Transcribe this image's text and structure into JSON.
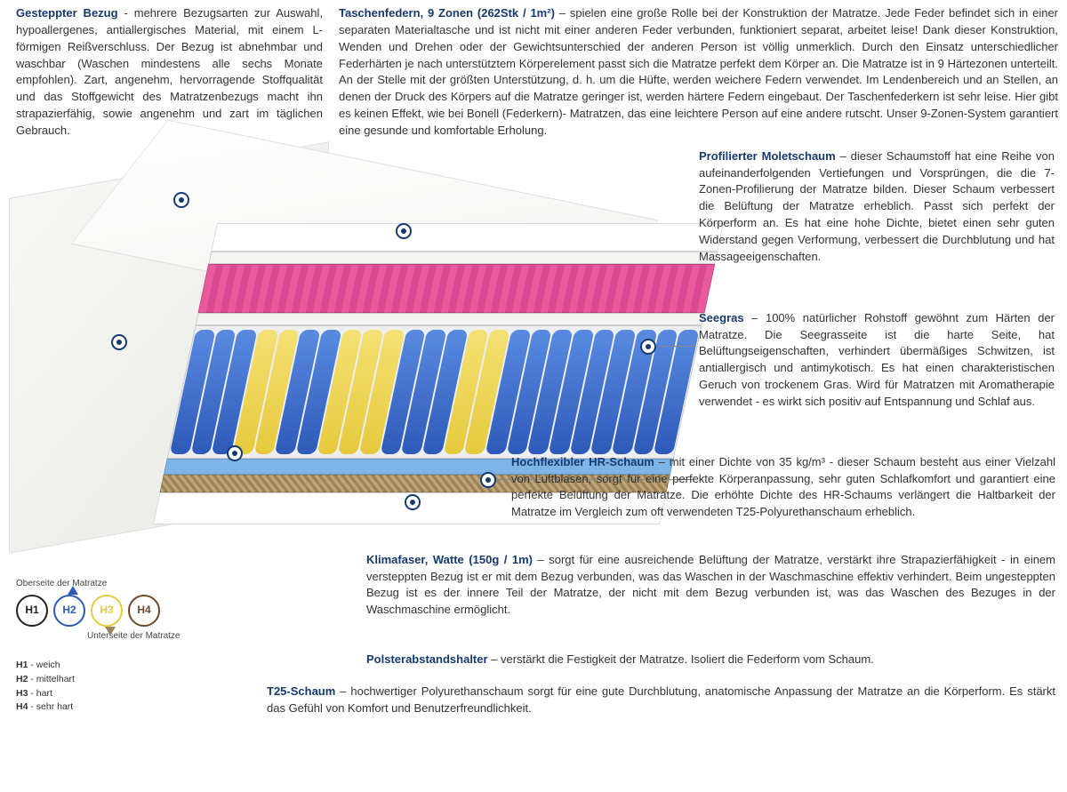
{
  "colors": {
    "heading": "#153a6e",
    "text": "#333333",
    "spring_blue": "#2d5ab8",
    "spring_yellow": "#e6c93c",
    "foam_pink": "#e85a9b",
    "foam_blue": "#7fb4e8",
    "seagrass": "#9c8258",
    "h1_ring": "#222222",
    "h2_ring": "#2d5ab8",
    "h3_ring": "#e6c93c",
    "h4_ring": "#6b4a2a"
  },
  "top": {
    "bezug_h": "Gesteppter Bezug",
    "bezug_t": " - mehrere Bezugsarten zur Auswahl, hypoallergenes, antiallergisches Material, mit einem L-förmigen Reißverschluss. Der Bezug ist abnehmbar und waschbar (Waschen mindestens alle sechs Monate empfohlen). Zart, angenehm, hervorragende Stoffqualität und das Stoffgewicht des Matratzenbezugs macht ihn strapazierfähig, sowie angenehm und zart im täglichen Gebrauch.",
    "federn_h": "Taschenfedern, 9 Zonen (262Stk / 1m²)",
    "federn_t": " –  spielen eine große Rolle bei der Konstruktion der Matratze. Jede Feder befindet sich in einer separaten Materialtasche und ist nicht mit einer anderen Feder verbunden, funktioniert separat, arbeitet leise! Dank dieser Konstruktion, Wenden und Drehen oder der Gewichtsunterschied der anderen Person ist völlig unmerklich. Durch den Einsatz unterschiedlicher Federhärten je nach unterstütztem Körperelement passt sich die Matratze perfekt dem Körper an. Die Matratze ist in 9 Härtezonen unterteilt. An der Stelle mit der größten Unterstützung, d. h. um die Hüfte, werden weichere Federn verwendet. Im Lendenbereich und an Stellen, an denen der Druck des Körpers auf die Matratze geringer ist, werden härtere Federn eingebaut. Der Taschenfederkern ist sehr leise. Hier gibt es keinen Effekt, wie bei Bonell (Federkern)- Matratzen, das eine leichtere Person auf eine andere rutscht. Unser 9-Zonen-System garantiert eine gesunde und komfortable Erholung."
  },
  "ann": {
    "molet_h": "Profilierter Moletschaum",
    "molet_t": " – dieser Schaumstoff hat eine Reihe von aufeinanderfolgenden Vertiefungen und Vorsprüngen, die die 7-Zonen-Profilierung der Matratze bilden. Dieser Schaum verbessert die Belüftung der Matratze erheblich. Passt sich perfekt der Körperform an. Es hat eine hohe Dichte, bietet einen sehr guten Widerstand gegen Verformung, verbessert die Durchblutung und hat Massageeigenschaften.",
    "seegras_h": "Seegras",
    "seegras_t": " – 100% natürlicher Rohstoff gewöhnt zum Härten der Matratze. Die Seegrasseite ist die harte Seite, hat Belüftungseigenschaften, verhindert übermäßiges Schwitzen, ist antiallergisch und antimykotisch. Es hat einen charakteristischen Geruch von trockenem Gras. Wird für Matratzen mit Aromatherapie verwendet - es wirkt sich positiv auf Entspannung und Schlaf aus.",
    "hr_h": "Hochflexibler HR-Schaum",
    "hr_t": " –  mit einer Dichte von 35 kg/m³ - dieser Schaum besteht aus einer Vielzahl von Luftblasen, sorgt für eine perfekte Körperanpassung, sehr guten Schlafkomfort und garantiert eine perfekte Belüftung der Matratze. Die erhöhte Dichte des HR-Schaums verlängert die Haltbarkeit der Matratze im Vergleich zum oft verwendeten T25-Polyurethanschaum erheblich.",
    "klima_h": "Klimafaser, Watte (150g / 1m)",
    "klima_t": " –  sorgt für eine ausreichende Belüftung der Matratze, verstärkt ihre Strapazierfähigkeit - in einem versteppten Bezug ist er mit dem Bezug verbunden, was das Waschen in der Waschmaschine effektiv verhindert. Beim ungesteppten Bezug ist es der innere Teil der Matratze, der nicht mit dem Bezug verbunden ist, was das Waschen des Bezuges in der Waschmaschine ermöglicht.",
    "polster_h": "Polsterabstandshalter",
    "polster_t": " – verstärkt die Festigkeit der Matratze. Isoliert die Federform vom Schaum.",
    "t25_h": "T25-Schaum",
    "t25_t": " – hochwertiger Polyurethanschaum sorgt für eine gute Durchblutung, anatomische Anpassung der Matratze an die Körperform. Es stärkt das Gefühl von Komfort und Benutzerfreundlichkeit."
  },
  "legend": {
    "top_label": "Oberseite der Matratze",
    "bottom_label": "Unterseite der Matratze",
    "circles": [
      {
        "code": "H1",
        "ring": "#222222"
      },
      {
        "code": "H2",
        "ring": "#2d5ab8"
      },
      {
        "code": "H3",
        "ring": "#e6c93c"
      },
      {
        "code": "H4",
        "ring": "#6b4a2a"
      }
    ],
    "keys": [
      {
        "k": "H1",
        "v": " - weich"
      },
      {
        "k": "H2",
        "v": " - mittelhart"
      },
      {
        "k": "H3",
        "v": " - hart"
      },
      {
        "k": "H4",
        "v": " - sehr hart"
      }
    ]
  },
  "springs_pattern": [
    "b",
    "b",
    "b",
    "y",
    "y",
    "b",
    "b",
    "y",
    "y",
    "y",
    "b",
    "b",
    "b",
    "y",
    "y",
    "b",
    "b",
    "b",
    "b",
    "b",
    "b",
    "b",
    "b",
    "b"
  ]
}
